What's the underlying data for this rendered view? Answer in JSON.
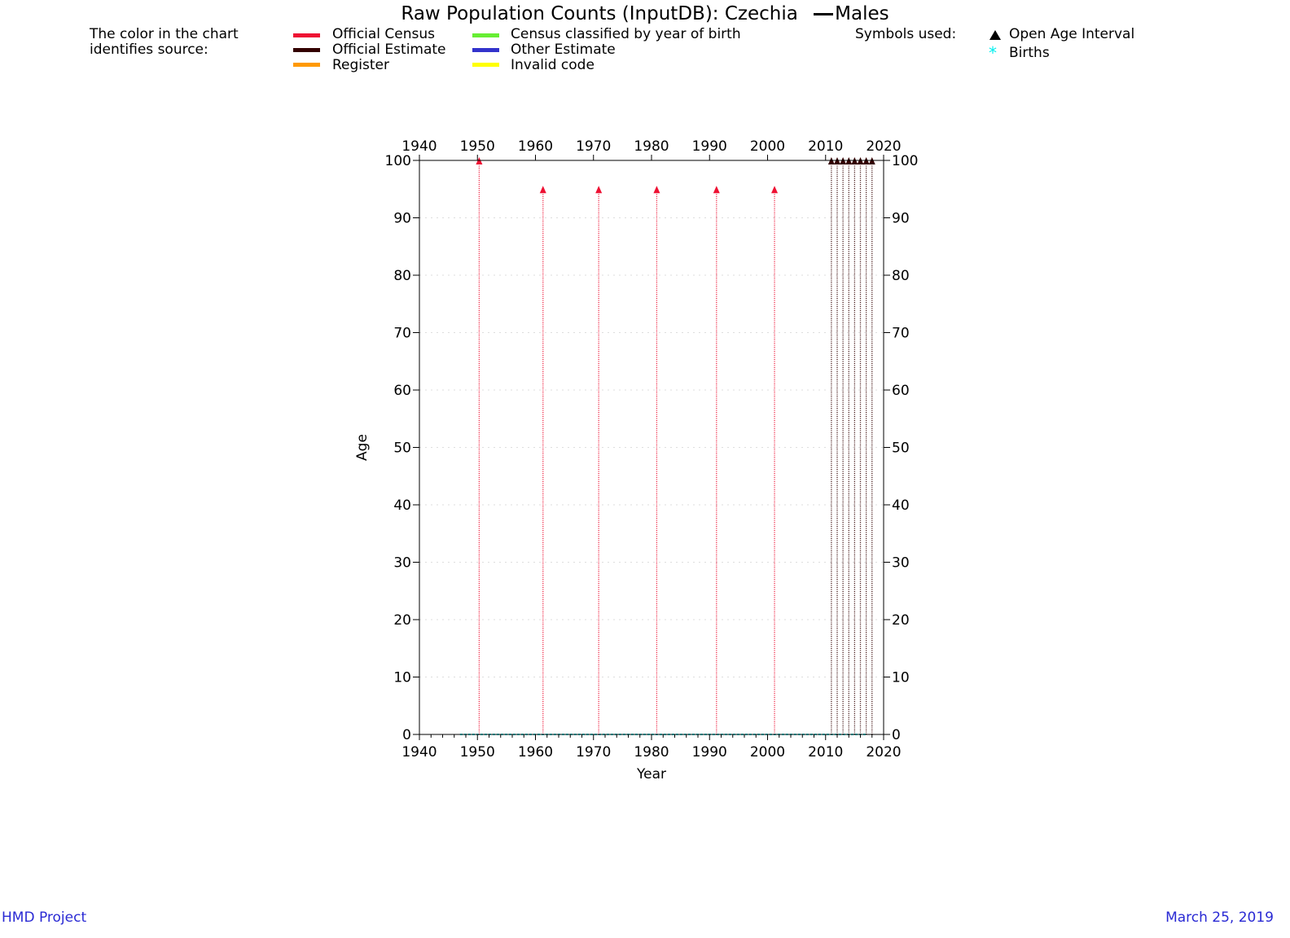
{
  "title": "Raw Population Counts (InputDB): Czechia",
  "sex_label": "Males",
  "legend": {
    "intro_line1": "The color in the chart",
    "intro_line2": "identifies source:",
    "sources": [
      {
        "label": "Official Census",
        "color": "#ee1133"
      },
      {
        "label": "Official Estimate",
        "color": "#330000"
      },
      {
        "label": "Register",
        "color": "#ff9900"
      },
      {
        "label": "Census classified by year of birth",
        "color": "#66ee33"
      },
      {
        "label": "Other Estimate",
        "color": "#3333cc"
      },
      {
        "label": "Invalid code",
        "color": "#ffff00"
      }
    ],
    "symbols_title": "Symbols used:",
    "symbols": [
      {
        "label": "Open Age Interval",
        "icon": "triangle-up-icon"
      },
      {
        "label": "Births",
        "icon": "asterisk-icon",
        "color": "#00eeee"
      }
    ]
  },
  "chart_data": {
    "type": "scatter",
    "xlabel": "Year",
    "ylabel": "Age",
    "xlim": [
      1940,
      2020
    ],
    "ylim": [
      0,
      100
    ],
    "x_ticks": [
      "1940",
      "1950",
      "1960",
      "1970",
      "1980",
      "1990",
      "2000",
      "2010",
      "2020"
    ],
    "y_ticks": [
      "0",
      "10",
      "20",
      "30",
      "40",
      "50",
      "60",
      "70",
      "80",
      "90",
      "100"
    ],
    "grid": true,
    "series": [
      {
        "name": "Official Census",
        "color": "#ee1133",
        "years": [
          1950.3,
          1961.3,
          1970.9,
          1980.9,
          1991.2,
          2001.2
        ],
        "open_age_interval": [
          100,
          95,
          95,
          95,
          95,
          95
        ]
      },
      {
        "name": "Official Estimate",
        "color": "#330000",
        "years": [
          2011,
          2012,
          2013,
          2014,
          2015,
          2016,
          2017,
          2018
        ],
        "open_age_interval": [
          100,
          100,
          100,
          100,
          100,
          100,
          100,
          100
        ]
      },
      {
        "name": "Births",
        "color": "#00eeee",
        "year_range": [
          1947,
          2017
        ],
        "age": 0
      }
    ]
  },
  "footer": {
    "left": "HMD Project",
    "right": "March 25, 2019"
  }
}
